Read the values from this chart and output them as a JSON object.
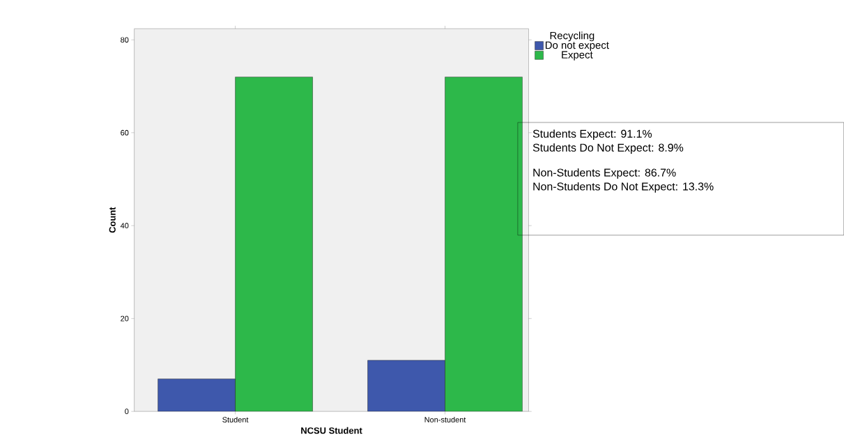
{
  "chart_data": {
    "type": "bar",
    "xlabel": "NCSU Student",
    "ylabel": "Count",
    "legend_title": "Recycling",
    "categories": [
      "Student",
      "Non-student"
    ],
    "series": [
      {
        "name": "Do not expect",
        "color": "#3e58ac",
        "values": [
          7,
          11
        ]
      },
      {
        "name": "Expect",
        "color": "#2db84a",
        "values": [
          72,
          72
        ]
      }
    ],
    "ylim": [
      0,
      82.4
    ],
    "yticks": [
      0,
      20,
      40,
      60,
      80
    ],
    "grid": false,
    "legend": "right",
    "annotations": [
      "Students Expect: 91.1%",
      "Students Do Not Expect: 8.9%",
      "Non-Students Expect: 86.7%",
      "Non-Students Do Not Expect: 13.3%"
    ]
  }
}
